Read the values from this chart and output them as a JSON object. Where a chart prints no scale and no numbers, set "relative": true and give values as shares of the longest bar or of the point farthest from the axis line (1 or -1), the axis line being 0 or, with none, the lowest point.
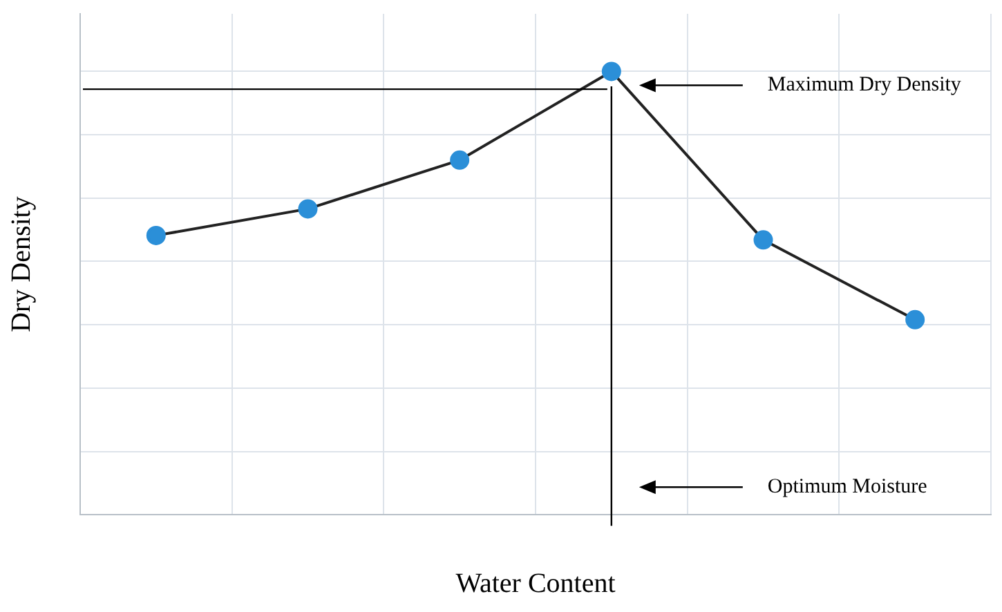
{
  "chart_data": {
    "type": "line",
    "relative": true,
    "xlabel": "Water Content",
    "ylabel": "Dry Density",
    "categories": [
      null,
      null,
      null,
      null,
      null,
      null
    ],
    "grid": true,
    "legend": false,
    "series": [
      {
        "color": "#222222",
        "colors": [
          "#2b8fd8",
          "#2b8fd8",
          "#2b8fd8",
          "#2b8fd8",
          "#2b8fd8",
          "#2b8fd8"
        ],
        "marker": "circle",
        "values": [
          0.63,
          0.69,
          0.8,
          1,
          0.62,
          0.44
        ]
      }
    ],
    "ref_lines": [
      {
        "axis": "y",
        "value": 0.96,
        "color": "#000000"
      }
    ],
    "annotations": [
      "Maximum Dry Density",
      "Optimum Moisture"
    ]
  }
}
